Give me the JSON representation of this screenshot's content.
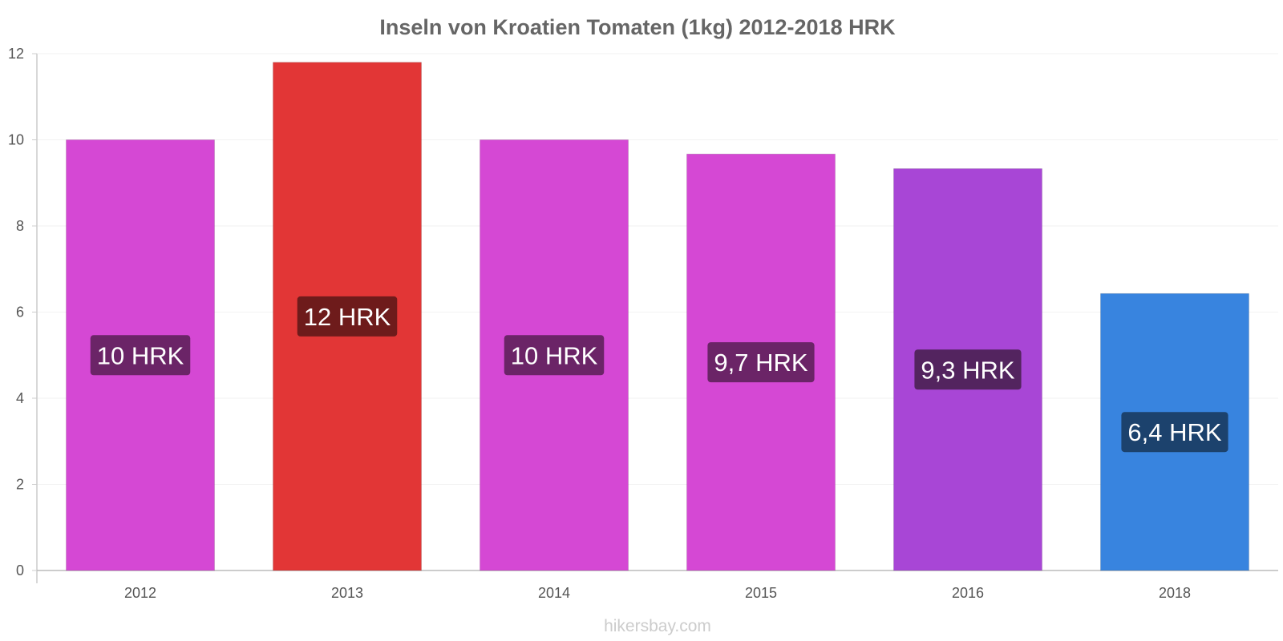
{
  "chart_data": {
    "type": "bar",
    "title": "Inseln von Kroatien Tomaten (1kg) 2012-2018 HRK",
    "categories": [
      "2012",
      "2013",
      "2014",
      "2015",
      "2016",
      "2018"
    ],
    "values": [
      10,
      11.8,
      10,
      9.67,
      9.33,
      6.43
    ],
    "data_labels": [
      "10 HRK",
      "12 HRK",
      "10 HRK",
      "9,7 HRK",
      "9,3 HRK",
      "6,4 HRK"
    ],
    "bar_colors": [
      "#d548d4",
      "#e23636",
      "#d548d4",
      "#d548d4",
      "#a846d6",
      "#3884df"
    ],
    "label_bg_colors": [
      "#6b2467",
      "#6e1b1b",
      "#6b2467",
      "#6b2467",
      "#53245f",
      "#1c426d"
    ],
    "y_ticks": [
      "0",
      "2",
      "4",
      "6",
      "8",
      "10",
      "12"
    ],
    "ylim": [
      0,
      12
    ],
    "xlabel": "",
    "ylabel": "",
    "grid": true,
    "legend": "none"
  },
  "watermark": "hikersbay.com"
}
